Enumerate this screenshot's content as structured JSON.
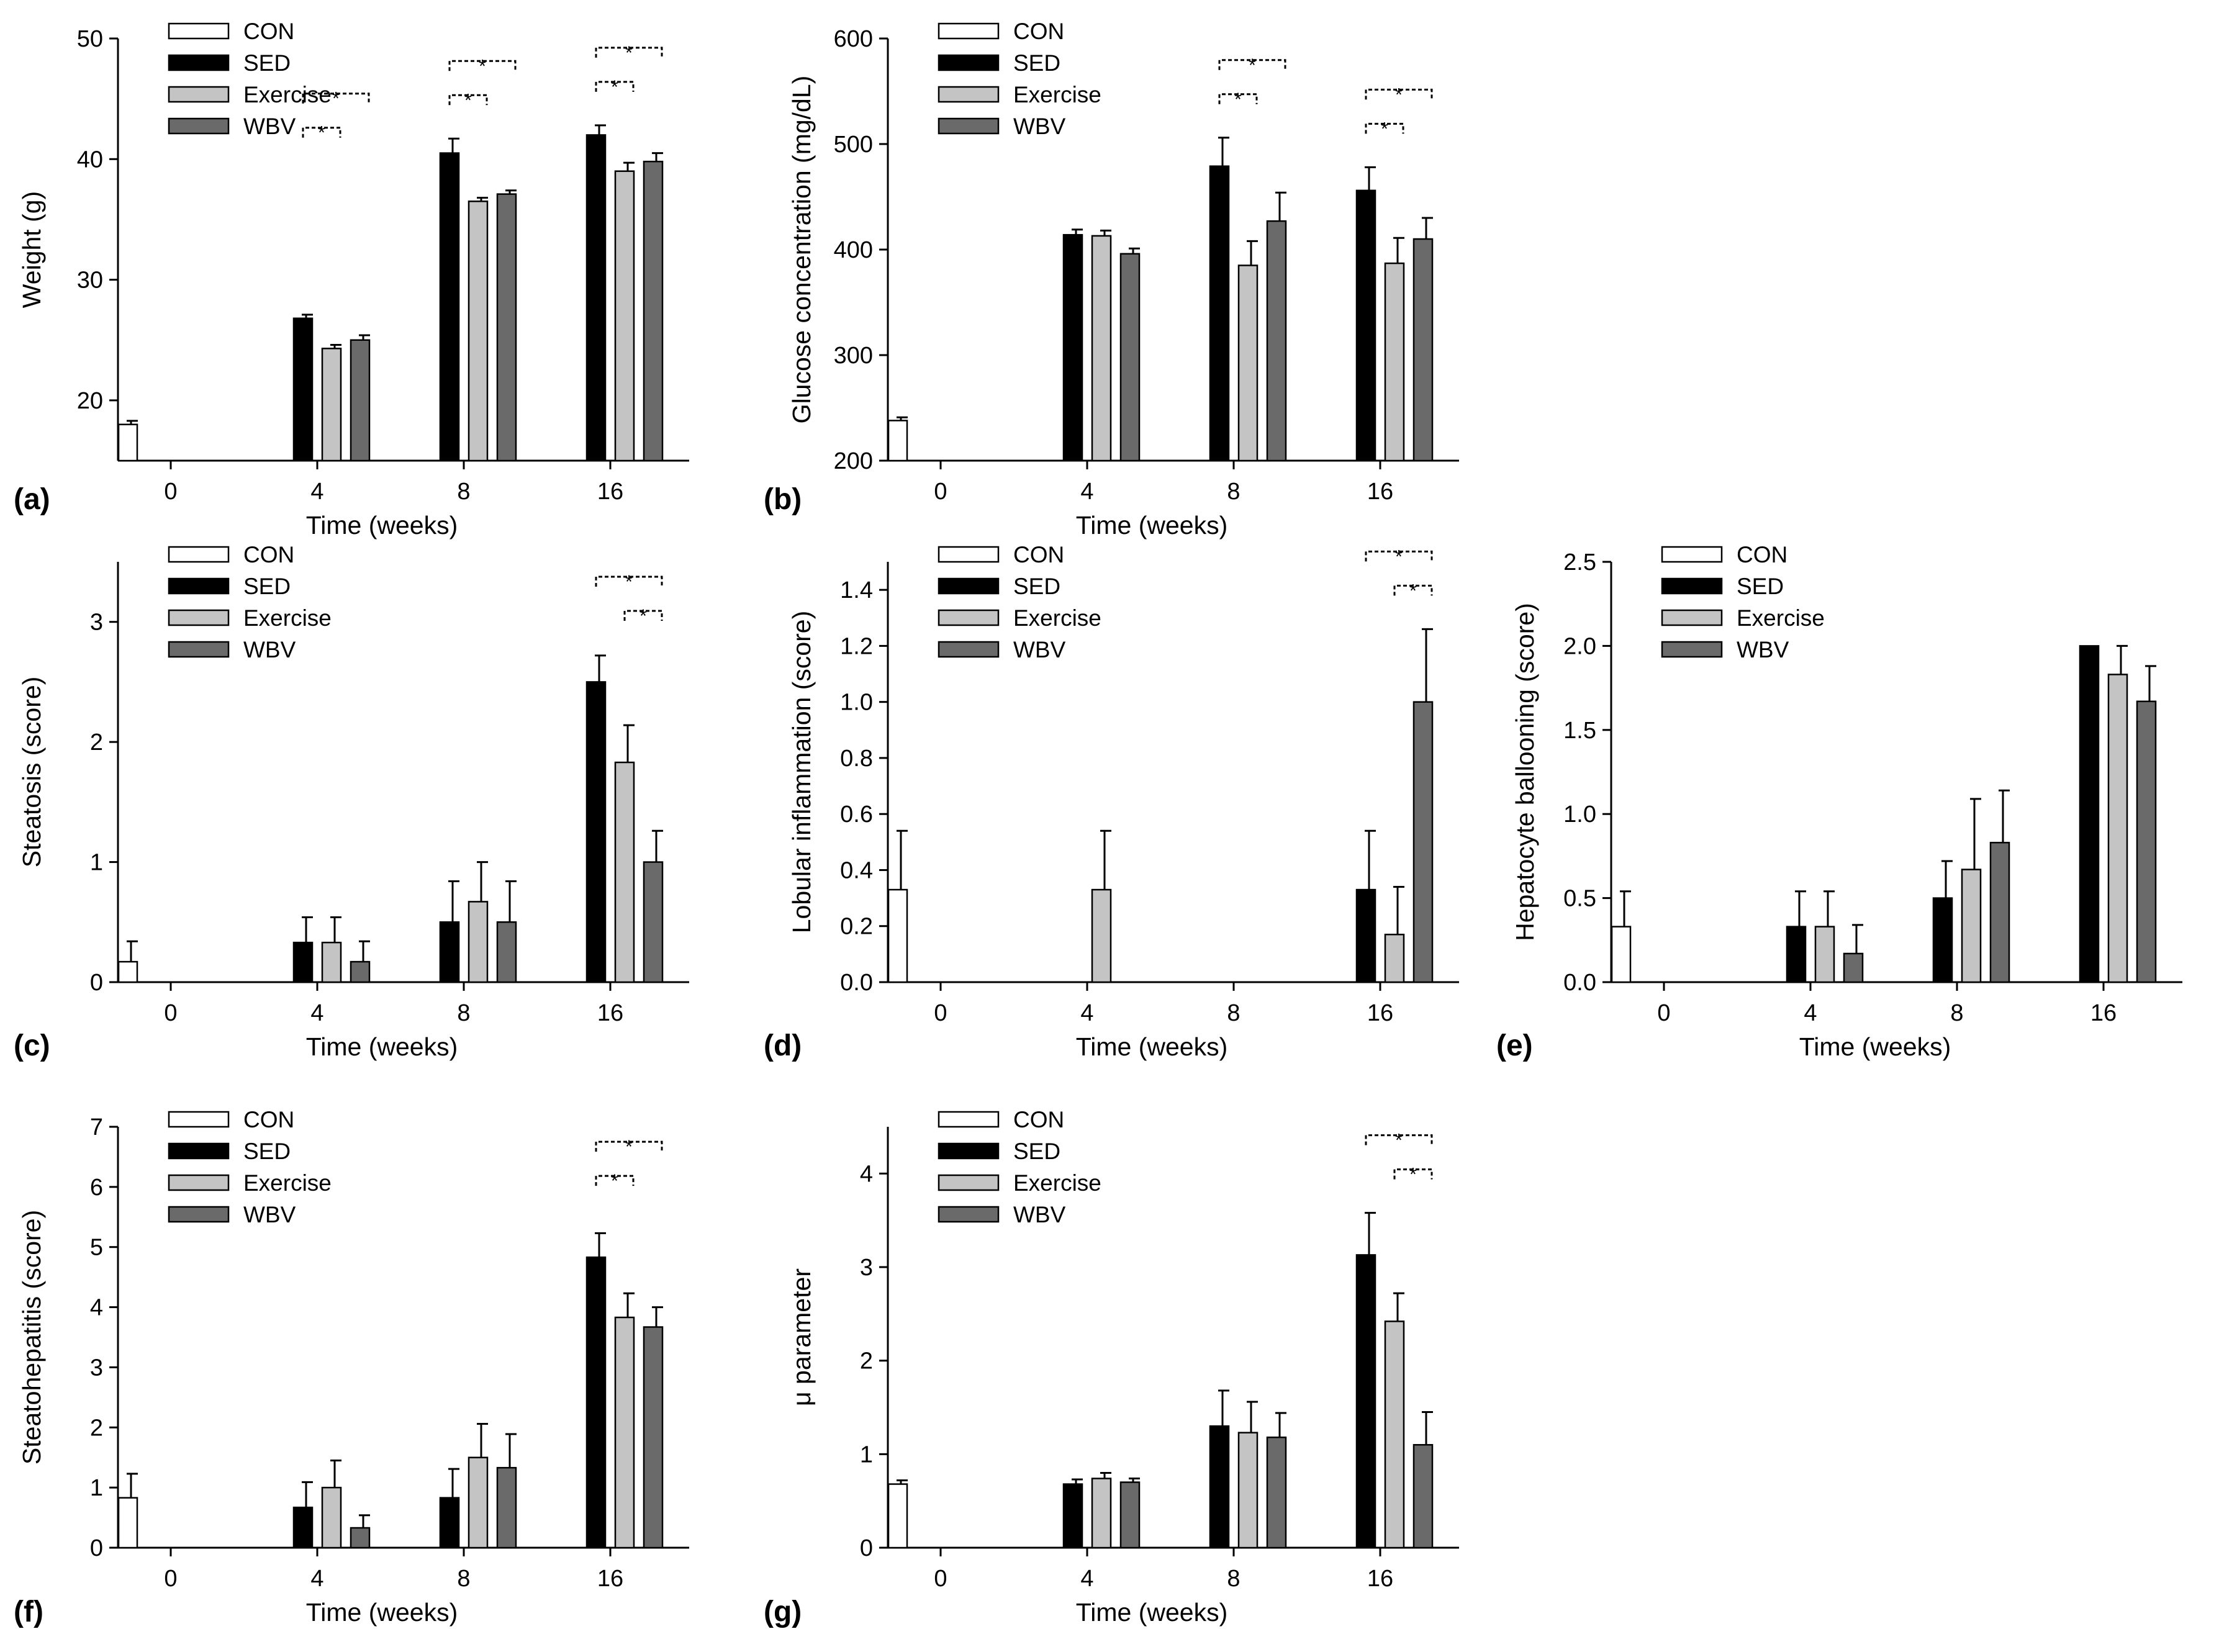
{
  "figure": {
    "series_names": [
      "CON",
      "SED",
      "Exercise",
      "WBV"
    ],
    "colors": {
      "CON": "#ffffff",
      "SED": "#000000",
      "Exercise": "#c4c4c4",
      "WBV": "#6a6a6a"
    }
  },
  "chart_data": [
    {
      "id": "a",
      "panel_label": "(a)",
      "type": "bar",
      "title": "",
      "xlabel": "Time (weeks)",
      "ylabel": "Weight (g)",
      "ylim": [
        15,
        50
      ],
      "yticks": [
        20,
        30,
        40,
        50
      ],
      "ytick_labels": [
        "20",
        "30",
        "40",
        "50"
      ],
      "categories": [
        "0",
        "4",
        "8",
        "16"
      ],
      "legend_position": "top-left",
      "series": [
        {
          "name": "CON",
          "values": [
            18,
            null,
            null,
            null
          ],
          "errors": [
            0.3,
            null,
            null,
            null
          ]
        },
        {
          "name": "SED",
          "values": [
            null,
            26.8,
            40.5,
            42.0
          ],
          "errors": [
            null,
            0.3,
            1.2,
            0.8
          ]
        },
        {
          "name": "Exercise",
          "values": [
            null,
            24.3,
            36.5,
            39.0
          ],
          "errors": [
            null,
            0.3,
            0.3,
            0.7
          ]
        },
        {
          "name": "WBV",
          "values": [
            null,
            25.0,
            37.1,
            39.8
          ],
          "errors": [
            null,
            0.4,
            0.3,
            0.7
          ]
        }
      ],
      "significance": [
        {
          "category": "4",
          "from": 1,
          "to": 3,
          "label": "*"
        },
        {
          "category": "4",
          "from": 1,
          "to": 2,
          "label": "*"
        },
        {
          "category": "8",
          "from": 1,
          "to": 3,
          "label": "*"
        },
        {
          "category": "8",
          "from": 1,
          "to": 2,
          "label": "*"
        },
        {
          "category": "16",
          "from": 1,
          "to": 3,
          "label": "*"
        },
        {
          "category": "16",
          "from": 1,
          "to": 2,
          "label": "*"
        }
      ]
    },
    {
      "id": "b",
      "panel_label": "(b)",
      "type": "bar",
      "title": "",
      "xlabel": "Time (weeks)",
      "ylabel": "Glucose concentration (mg/dL)",
      "ylim": [
        200,
        600
      ],
      "yticks": [
        200,
        300,
        400,
        500,
        600
      ],
      "ytick_labels": [
        "200",
        "300",
        "400",
        "500",
        "600"
      ],
      "categories": [
        "0",
        "4",
        "8",
        "16"
      ],
      "legend_position": "top-left",
      "series": [
        {
          "name": "CON",
          "values": [
            238,
            null,
            null,
            null
          ],
          "errors": [
            3,
            null,
            null,
            null
          ]
        },
        {
          "name": "SED",
          "values": [
            null,
            414,
            479,
            456
          ],
          "errors": [
            null,
            5,
            27,
            22
          ]
        },
        {
          "name": "Exercise",
          "values": [
            null,
            413,
            385,
            387
          ],
          "errors": [
            null,
            5,
            23,
            24
          ]
        },
        {
          "name": "WBV",
          "values": [
            null,
            396,
            427,
            410
          ],
          "errors": [
            null,
            5,
            27,
            20
          ]
        }
      ],
      "significance": [
        {
          "category": "8",
          "from": 1,
          "to": 3,
          "label": "*"
        },
        {
          "category": "8",
          "from": 1,
          "to": 2,
          "label": "*"
        },
        {
          "category": "16",
          "from": 1,
          "to": 3,
          "label": "*"
        },
        {
          "category": "16",
          "from": 1,
          "to": 2,
          "label": "*"
        }
      ]
    },
    {
      "id": "c",
      "panel_label": "(c)",
      "type": "bar",
      "title": "",
      "xlabel": "Time (weeks)",
      "ylabel": "Steatosis (score)",
      "ylim": [
        0,
        3.5
      ],
      "yticks": [
        0,
        1,
        2,
        3
      ],
      "ytick_labels": [
        "0",
        "1",
        "2",
        "3"
      ],
      "categories": [
        "0",
        "4",
        "8",
        "16"
      ],
      "legend_position": "top-left",
      "series": [
        {
          "name": "CON",
          "values": [
            0.17,
            null,
            null,
            null
          ],
          "errors": [
            0.17,
            null,
            null,
            null
          ]
        },
        {
          "name": "SED",
          "values": [
            null,
            0.33,
            0.5,
            2.5
          ],
          "errors": [
            null,
            0.21,
            0.34,
            0.22
          ]
        },
        {
          "name": "Exercise",
          "values": [
            null,
            0.33,
            0.67,
            1.83
          ],
          "errors": [
            null,
            0.21,
            0.33,
            0.31
          ]
        },
        {
          "name": "WBV",
          "values": [
            null,
            0.17,
            0.5,
            1.0
          ],
          "errors": [
            null,
            0.17,
            0.34,
            0.26
          ]
        }
      ],
      "significance": [
        {
          "category": "16",
          "from": 1,
          "to": 3,
          "label": "*"
        },
        {
          "category": "16",
          "from": 2,
          "to": 3,
          "label": "*"
        }
      ]
    },
    {
      "id": "d",
      "panel_label": "(d)",
      "type": "bar",
      "title": "",
      "xlabel": "Time (weeks)",
      "ylabel": "Lobular inflammation (score)",
      "ylim": [
        0,
        1.5
      ],
      "yticks": [
        0,
        0.2,
        0.4,
        0.6,
        0.8,
        1.0,
        1.2,
        1.4
      ],
      "ytick_labels": [
        "0.0",
        "0.2",
        "0.4",
        "0.6",
        "0.8",
        "1.0",
        "1.2",
        "1.4"
      ],
      "categories": [
        "0",
        "4",
        "8",
        "16"
      ],
      "legend_position": "top-left",
      "series": [
        {
          "name": "CON",
          "values": [
            0.33,
            null,
            null,
            null
          ],
          "errors": [
            0.21,
            null,
            null,
            null
          ]
        },
        {
          "name": "SED",
          "values": [
            null,
            null,
            null,
            0.33
          ],
          "errors": [
            null,
            null,
            null,
            0.21
          ]
        },
        {
          "name": "Exercise",
          "values": [
            null,
            0.33,
            null,
            0.17
          ],
          "errors": [
            null,
            0.21,
            null,
            0.17
          ]
        },
        {
          "name": "WBV",
          "values": [
            null,
            null,
            null,
            1.0
          ],
          "errors": [
            null,
            null,
            null,
            0.26
          ]
        }
      ],
      "significance": [
        {
          "category": "16",
          "from": 1,
          "to": 3,
          "label": "*"
        },
        {
          "category": "16",
          "from": 2,
          "to": 3,
          "label": "*"
        }
      ]
    },
    {
      "id": "e",
      "panel_label": "(e)",
      "type": "bar",
      "title": "",
      "xlabel": "Time (weeks)",
      "ylabel": "Hepatocyte ballooning (score)",
      "ylim": [
        0,
        2.5
      ],
      "yticks": [
        0,
        0.5,
        1.0,
        1.5,
        2.0,
        2.5
      ],
      "ytick_labels": [
        "0.0",
        "0.5",
        "1.0",
        "1.5",
        "2.0",
        "2.5"
      ],
      "categories": [
        "0",
        "4",
        "8",
        "16"
      ],
      "legend_position": "top-left",
      "series": [
        {
          "name": "CON",
          "values": [
            0.33,
            null,
            null,
            null
          ],
          "errors": [
            0.21,
            null,
            null,
            null
          ]
        },
        {
          "name": "SED",
          "values": [
            null,
            0.33,
            0.5,
            2.0
          ],
          "errors": [
            null,
            0.21,
            0.22,
            0
          ]
        },
        {
          "name": "Exercise",
          "values": [
            null,
            0.33,
            0.67,
            1.83
          ],
          "errors": [
            null,
            0.21,
            0.42,
            0.17
          ]
        },
        {
          "name": "WBV",
          "values": [
            null,
            0.17,
            0.83,
            1.67
          ],
          "errors": [
            null,
            0.17,
            0.31,
            0.21
          ]
        }
      ],
      "significance": []
    },
    {
      "id": "f",
      "panel_label": "(f)",
      "type": "bar",
      "title": "",
      "xlabel": "Time (weeks)",
      "ylabel": "Steatohepatitis (score)",
      "ylim": [
        0,
        7
      ],
      "yticks": [
        0,
        1,
        2,
        3,
        4,
        5,
        6,
        7
      ],
      "ytick_labels": [
        "0",
        "1",
        "2",
        "3",
        "4",
        "5",
        "6",
        "7"
      ],
      "categories": [
        "0",
        "4",
        "8",
        "16"
      ],
      "legend_position": "top-left",
      "series": [
        {
          "name": "CON",
          "values": [
            0.83,
            null,
            null,
            null
          ],
          "errors": [
            0.4,
            null,
            null,
            null
          ]
        },
        {
          "name": "SED",
          "values": [
            null,
            0.67,
            0.83,
            4.83
          ],
          "errors": [
            null,
            0.42,
            0.48,
            0.4
          ]
        },
        {
          "name": "Exercise",
          "values": [
            null,
            1.0,
            1.5,
            3.83
          ],
          "errors": [
            null,
            0.45,
            0.56,
            0.4
          ]
        },
        {
          "name": "WBV",
          "values": [
            null,
            0.33,
            1.33,
            3.67
          ],
          "errors": [
            null,
            0.21,
            0.56,
            0.33
          ]
        }
      ],
      "significance": [
        {
          "category": "16",
          "from": 1,
          "to": 3,
          "label": "*"
        },
        {
          "category": "16",
          "from": 1,
          "to": 2,
          "label": "*"
        }
      ]
    },
    {
      "id": "g",
      "panel_label": "(g)",
      "type": "bar",
      "title": "",
      "xlabel": "Time (weeks)",
      "ylabel": "μ parameter",
      "ylim": [
        0,
        4.5
      ],
      "yticks": [
        0,
        1,
        2,
        3,
        4
      ],
      "ytick_labels": [
        "0",
        "1",
        "2",
        "3",
        "4"
      ],
      "categories": [
        "0",
        "4",
        "8",
        "16"
      ],
      "legend_position": "top-left",
      "series": [
        {
          "name": "CON",
          "values": [
            0.68,
            null,
            null,
            null
          ],
          "errors": [
            0.04,
            null,
            null,
            null
          ]
        },
        {
          "name": "SED",
          "values": [
            null,
            0.68,
            1.3,
            3.13
          ],
          "errors": [
            null,
            0.05,
            0.38,
            0.45
          ]
        },
        {
          "name": "Exercise",
          "values": [
            null,
            0.74,
            1.23,
            2.42
          ],
          "errors": [
            null,
            0.06,
            0.33,
            0.3
          ]
        },
        {
          "name": "WBV",
          "values": [
            null,
            0.7,
            1.18,
            1.1
          ],
          "errors": [
            null,
            0.04,
            0.26,
            0.35
          ]
        }
      ],
      "significance": [
        {
          "category": "16",
          "from": 1,
          "to": 3,
          "label": "*"
        },
        {
          "category": "16",
          "from": 2,
          "to": 3,
          "label": "*"
        }
      ]
    }
  ]
}
